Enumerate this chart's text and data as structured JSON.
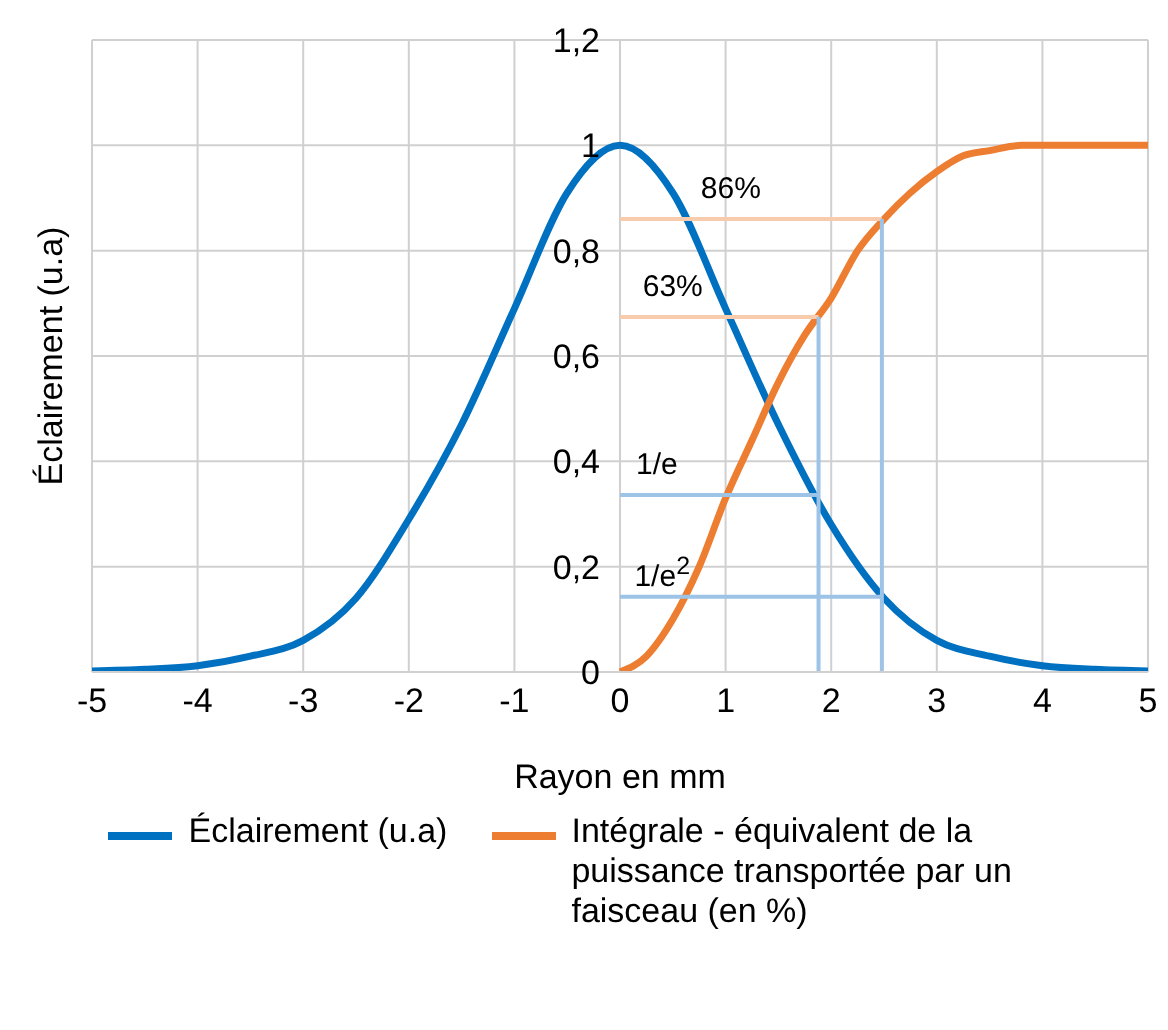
{
  "chart_data": {
    "type": "line",
    "xlabel": "Rayon en mm",
    "ylabel": "Éclairement (u.a)",
    "xlim": [
      -5,
      5
    ],
    "xticks": [
      -5,
      -4,
      -3,
      -2,
      -1,
      0,
      1,
      2,
      3,
      4,
      5
    ],
    "ylim": [
      0,
      1.2
    ],
    "yticks": [
      {
        "value": 0,
        "label": "0"
      },
      {
        "value": 0.2,
        "label": "0,2"
      },
      {
        "value": 0.4,
        "label": "0,4"
      },
      {
        "value": 0.6,
        "label": "0,6"
      },
      {
        "value": 0.8,
        "label": "0,8"
      },
      {
        "value": 1,
        "label": "1"
      },
      {
        "value": 1.2,
        "label": "1,2"
      }
    ],
    "grid": true,
    "legend": "bottom",
    "marker": "none",
    "series": [
      {
        "name": "Éclairement (u.a)",
        "color": "#0070c0",
        "x": [
          -5,
          -4.5,
          -4,
          -3.5,
          -3,
          -2.5,
          -2,
          -1.5,
          -1,
          -0.5,
          0,
          0.5,
          1,
          1.5,
          2,
          2.5,
          3,
          3.5,
          4,
          4.5,
          5
        ],
        "values": [
          0.002,
          0.005,
          0.012,
          0.03,
          0.06,
          0.14,
          0.29,
          0.47,
          0.69,
          0.91,
          1,
          0.91,
          0.69,
          0.47,
          0.28,
          0.14,
          0.06,
          0.03,
          0.012,
          0.005,
          0.002
        ]
      },
      {
        "name": "Intégrale - équivalent de la puissance transportée par un faisceau (en %)",
        "color": "#ed7d31",
        "x": [
          0,
          0.25,
          0.5,
          0.75,
          1,
          1.25,
          1.5,
          1.75,
          2,
          2.25,
          2.5,
          2.75,
          3,
          3.25,
          3.5,
          3.8,
          4,
          5
        ],
        "values": [
          0,
          0.03,
          0.1,
          0.2,
          0.33,
          0.44,
          0.55,
          0.64,
          0.71,
          0.8,
          0.86,
          0.91,
          0.95,
          0.98,
          0.99,
          1,
          1,
          1
        ]
      },
      {
        "color": "#f8cbad",
        "x": [
          0,
          2.48
        ],
        "values": [
          0.86,
          0.86
        ]
      },
      {
        "color": "#f8cbad",
        "x": [
          0,
          1.88
        ],
        "values": [
          0.674,
          0.674
        ]
      },
      {
        "color": "#9dc3e6",
        "x": [
          0,
          1.88
        ],
        "values": [
          0.336,
          0.336
        ]
      },
      {
        "color": "#9dc3e6",
        "x": [
          0,
          2.48
        ],
        "values": [
          0.143,
          0.143
        ]
      },
      {
        "color": "#9dc3e6",
        "x": [
          1.88,
          1.88
        ],
        "values": [
          0,
          0.674
        ]
      },
      {
        "color": "#9dc3e6",
        "x": [
          2.48,
          2.48
        ],
        "values": [
          0,
          0.86
        ]
      }
    ],
    "annotations": [
      {
        "text": "86%",
        "x": 1.05,
        "y": 0.86
      },
      {
        "text": "63%",
        "x": 0.5,
        "y": 0.674
      },
      {
        "text": "1/e",
        "x": 0.35,
        "y": 0.336
      },
      {
        "text": "1/e$^{2}$",
        "x": 0.4,
        "y": 0.143
      }
    ]
  }
}
